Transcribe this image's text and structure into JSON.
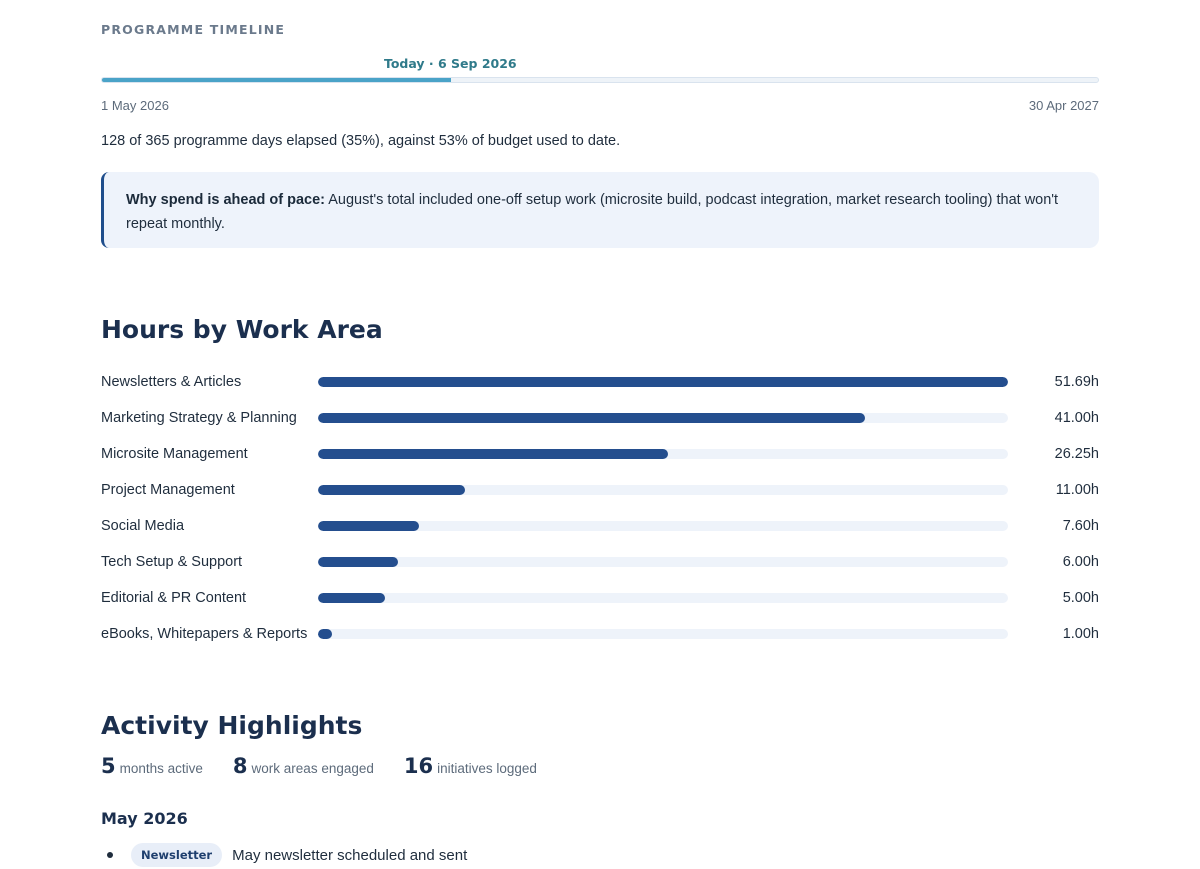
{
  "timeline": {
    "eyebrow": "PROGRAMME TIMELINE",
    "today_label": "Today · 6 Sep 2026",
    "progress_fraction": 0.35,
    "start_date": "1 May 2026",
    "end_date": "30 Apr 2027",
    "summary": "128 of 365 programme days elapsed (35%), against 53% of budget used to date.",
    "callout_bold": "Why spend is ahead of pace:",
    "callout_text": " August's total included one-off setup work (microsite build, podcast integration, market research tooling) that won't repeat monthly."
  },
  "hours": {
    "title": "Hours by Work Area",
    "max_hours": 51.69,
    "rows": [
      {
        "label": "Newsletters & Articles",
        "hours": 51.69,
        "value": "51.69h"
      },
      {
        "label": "Marketing Strategy & Planning",
        "hours": 41.0,
        "value": "41.00h"
      },
      {
        "label": "Microsite Management",
        "hours": 26.25,
        "value": "26.25h"
      },
      {
        "label": "Project Management",
        "hours": 11.0,
        "value": "11.00h"
      },
      {
        "label": "Social Media",
        "hours": 7.6,
        "value": "7.60h"
      },
      {
        "label": "Tech Setup & Support",
        "hours": 6.0,
        "value": "6.00h"
      },
      {
        "label": "Editorial & PR Content",
        "hours": 5.0,
        "value": "5.00h"
      },
      {
        "label": "eBooks, Whitepapers & Reports",
        "hours": 1.0,
        "value": "1.00h"
      }
    ]
  },
  "activity": {
    "title": "Activity Highlights",
    "stats": [
      {
        "num": "5",
        "label": "months active"
      },
      {
        "num": "8",
        "label": "work areas engaged"
      },
      {
        "num": "16",
        "label": "initiatives logged"
      }
    ],
    "month": "May 2026",
    "item_tag": "Newsletter",
    "item_text": "May newsletter scheduled and sent"
  },
  "colors": {
    "timeline_fill": "#4aa3c8",
    "bar_fill": "#244e8e",
    "today_label": "#2f7a8a",
    "callout_border": "#1f4e8c"
  }
}
